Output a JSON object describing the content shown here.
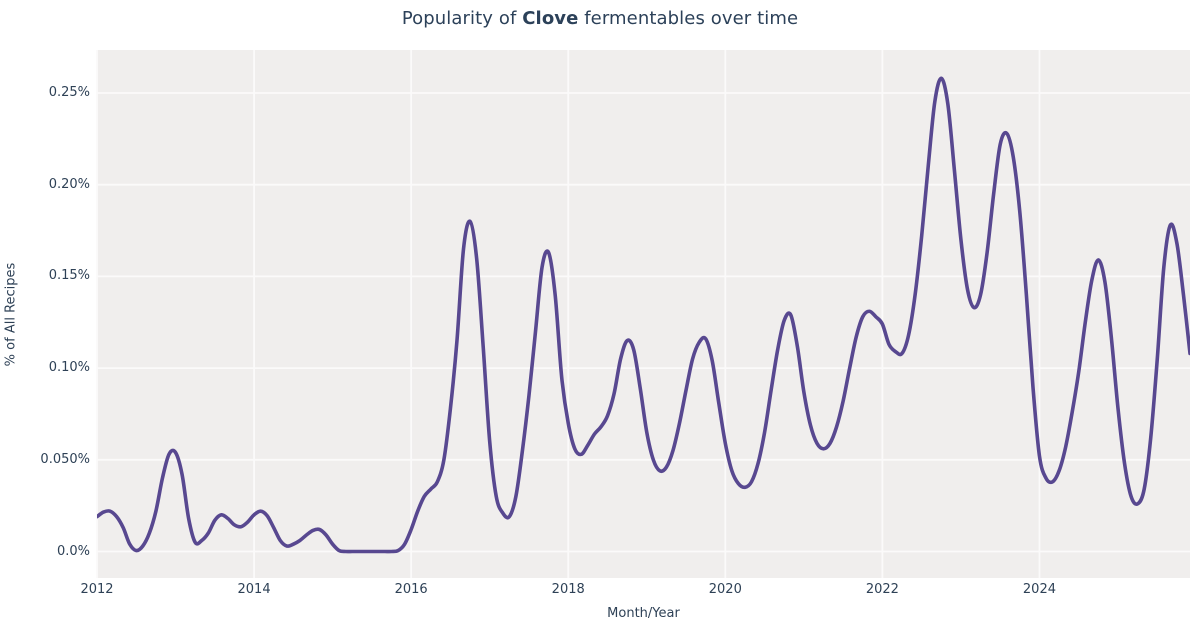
{
  "title": {
    "prefix": "Popularity of ",
    "highlight": "Clove",
    "suffix": " fermentables over time"
  },
  "axes": {
    "x_title": "Month/Year",
    "y_title": "% of All Recipes"
  },
  "colors": {
    "line": "#584890",
    "plot_background": "#f0eeed",
    "gridline": "#fbfafa",
    "text": "#2e4156",
    "title_text": "#2c4159",
    "figure_background": "#ffffff"
  },
  "chart_data": {
    "type": "line",
    "title": "Popularity of Clove fermentables over time",
    "xlabel": "Month/Year",
    "ylabel": "% of All Recipes",
    "x_unit": "month",
    "x_start": "2012-01",
    "x_end": "2025-12",
    "x_tick_labels": [
      "2012",
      "2014",
      "2016",
      "2018",
      "2020",
      "2022",
      "2024"
    ],
    "x_tick_months_from_start": [
      0,
      24,
      48,
      72,
      96,
      120,
      144
    ],
    "y_tick_labels": [
      "0.0%",
      "0.050%",
      "0.10%",
      "0.15%",
      "0.20%",
      "0.25%"
    ],
    "y_tick_values": [
      0,
      0.05,
      0.1,
      0.15,
      0.2,
      0.25
    ],
    "ylim": [
      -0.0145,
      0.2735
    ],
    "grid": true,
    "legend_position": "none",
    "series": [
      {
        "name": "Clove",
        "unit": "% of all recipes",
        "values_pct": [
          0.019,
          0.0215,
          0.022,
          0.019,
          0.013,
          0.004,
          0.0005,
          0.003,
          0.01,
          0.022,
          0.04,
          0.053,
          0.054,
          0.042,
          0.018,
          0.005,
          0.006,
          0.01,
          0.017,
          0.02,
          0.018,
          0.0145,
          0.0135,
          0.016,
          0.02,
          0.022,
          0.0195,
          0.013,
          0.006,
          0.003,
          0.004,
          0.006,
          0.009,
          0.0115,
          0.012,
          0.009,
          0.004,
          0.0005,
          0,
          0,
          0,
          0,
          0,
          0,
          0,
          0,
          0.0005,
          0.004,
          0.012,
          0.022,
          0.03,
          0.034,
          0.038,
          0.05,
          0.078,
          0.115,
          0.165,
          0.18,
          0.16,
          0.112,
          0.06,
          0.03,
          0.021,
          0.019,
          0.03,
          0.055,
          0.085,
          0.12,
          0.155,
          0.163,
          0.14,
          0.095,
          0.07,
          0.056,
          0.053,
          0.058,
          0.064,
          0.068,
          0.074,
          0.086,
          0.105,
          0.115,
          0.11,
          0.089,
          0.065,
          0.05,
          0.044,
          0.046,
          0.055,
          0.07,
          0.088,
          0.105,
          0.114,
          0.116,
          0.104,
          0.081,
          0.059,
          0.044,
          0.037,
          0.035,
          0.038,
          0.048,
          0.065,
          0.088,
          0.11,
          0.126,
          0.129,
          0.112,
          0.087,
          0.069,
          0.059,
          0.056,
          0.059,
          0.068,
          0.082,
          0.1,
          0.117,
          0.128,
          0.131,
          0.128,
          0.124,
          0.113,
          0.109,
          0.108,
          0.118,
          0.14,
          0.172,
          0.21,
          0.245,
          0.258,
          0.244,
          0.208,
          0.17,
          0.143,
          0.133,
          0.14,
          0.163,
          0.195,
          0.222,
          0.228,
          0.215,
          0.185,
          0.14,
          0.09,
          0.052,
          0.04,
          0.038,
          0.044,
          0.057,
          0.076,
          0.098,
          0.125,
          0.148,
          0.159,
          0.147,
          0.116,
          0.078,
          0.048,
          0.03,
          0.026,
          0.034,
          0.062,
          0.105,
          0.155,
          0.178,
          0.168,
          0.14,
          0.108
        ]
      }
    ]
  }
}
